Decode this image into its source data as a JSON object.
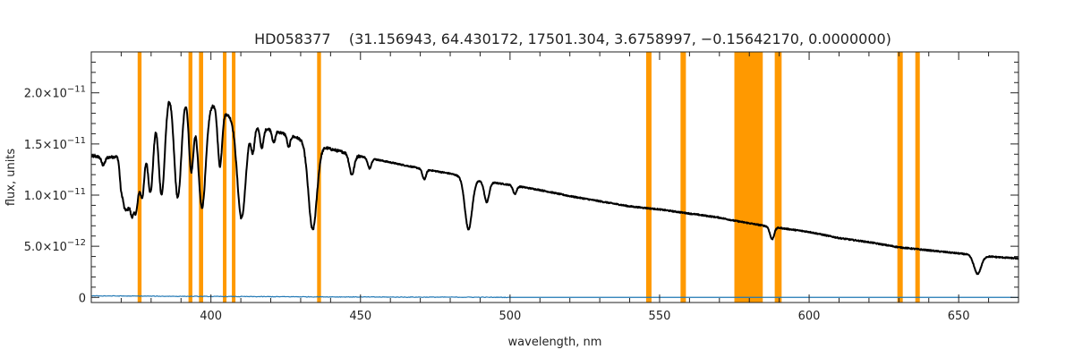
{
  "chart_data": {
    "type": "line",
    "title": "HD058377    (31.156943, 64.430172, 17501.304, 3.6758997, −0.15642170, 0.0000000)",
    "xlabel": "wavelength, nm",
    "ylabel": "flux, units",
    "xlim": [
      360,
      670
    ],
    "ylim": [
      -5e-13,
      2.4e-11
    ],
    "x_ticks": [
      400,
      450,
      500,
      550,
      600,
      650
    ],
    "x_tick_labels": [
      "400",
      "450",
      "500",
      "550",
      "600",
      "650"
    ],
    "y_ticks": [
      0,
      5e-12,
      1e-11,
      1.5e-11,
      2e-11
    ],
    "y_tick_labels": [
      {
        "mant": "0",
        "exp": ""
      },
      {
        "mant": "5.0×10",
        "exp": "−12"
      },
      {
        "mant": "1.0×10",
        "exp": "−11"
      },
      {
        "mant": "1.5×10",
        "exp": "−11"
      },
      {
        "mant": "2.0×10",
        "exp": "−11"
      }
    ],
    "continuum": [
      [
        360,
        1.38e-11
      ],
      [
        366,
        1.37e-11
      ],
      [
        370,
        1.38e-11
      ],
      [
        374,
        1.55e-11
      ],
      [
        378,
        1.95e-11
      ],
      [
        383,
        2.06e-11
      ],
      [
        388,
        2.03e-11
      ],
      [
        394,
        2e-11
      ],
      [
        398,
        1.97e-11
      ],
      [
        402,
        1.85e-11
      ],
      [
        406,
        1.78e-11
      ],
      [
        412,
        1.7e-11
      ],
      [
        420,
        1.64e-11
      ],
      [
        430,
        1.55e-11
      ],
      [
        440,
        1.45e-11
      ],
      [
        450,
        1.38e-11
      ],
      [
        460,
        1.32e-11
      ],
      [
        470,
        1.26e-11
      ],
      [
        480,
        1.21e-11
      ],
      [
        490,
        1.14e-11
      ],
      [
        500,
        1.1e-11
      ],
      [
        510,
        1.05e-11
      ],
      [
        520,
        9.9e-12
      ],
      [
        530,
        9.4e-12
      ],
      [
        540,
        8.9e-12
      ],
      [
        550,
        8.6e-12
      ],
      [
        560,
        8.2e-12
      ],
      [
        570,
        7.8e-12
      ],
      [
        575,
        7.5e-12
      ],
      [
        585,
        7e-12
      ],
      [
        590,
        6.8e-12
      ],
      [
        600,
        6.4e-12
      ],
      [
        610,
        5.8e-12
      ],
      [
        620,
        5.4e-12
      ],
      [
        630,
        4.9e-12
      ],
      [
        640,
        4.6e-12
      ],
      [
        650,
        4.3e-12
      ],
      [
        660,
        4e-12
      ],
      [
        670,
        3.8e-12
      ]
    ],
    "absorption_lines": [
      {
        "x": 364.0,
        "depth": 8e-13,
        "w": 0.6
      },
      {
        "x": 370.0,
        "depth": 3e-12,
        "w": 0.5
      },
      {
        "x": 371.0,
        "depth": 3.8e-12,
        "w": 0.5
      },
      {
        "x": 372.0,
        "depth": 4.8e-12,
        "w": 0.6
      },
      {
        "x": 373.4,
        "depth": 6e-12,
        "w": 0.7
      },
      {
        "x": 375.0,
        "depth": 7.2e-12,
        "w": 0.8
      },
      {
        "x": 377.1,
        "depth": 8.3e-12,
        "w": 0.9
      },
      {
        "x": 379.8,
        "depth": 9.5e-12,
        "w": 1.0
      },
      {
        "x": 383.5,
        "depth": 1.05e-11,
        "w": 1.1
      },
      {
        "x": 388.9,
        "depth": 1.05e-11,
        "w": 1.2
      },
      {
        "x": 393.4,
        "depth": 7.5e-12,
        "w": 0.8
      },
      {
        "x": 397.0,
        "depth": 1.1e-11,
        "w": 1.3
      },
      {
        "x": 403.0,
        "depth": 5.5e-12,
        "w": 0.7
      },
      {
        "x": 410.2,
        "depth": 9.5e-12,
        "w": 1.4
      },
      {
        "x": 414.0,
        "depth": 2.5e-12,
        "w": 0.6
      },
      {
        "x": 417.0,
        "depth": 2e-12,
        "w": 0.6
      },
      {
        "x": 421.0,
        "depth": 1.2e-12,
        "w": 0.5
      },
      {
        "x": 426.0,
        "depth": 1.2e-12,
        "w": 0.5
      },
      {
        "x": 434.0,
        "depth": 8.5e-12,
        "w": 1.4
      },
      {
        "x": 447.1,
        "depth": 2e-12,
        "w": 0.8
      },
      {
        "x": 453.0,
        "depth": 1e-12,
        "w": 0.6
      },
      {
        "x": 471.3,
        "depth": 1e-12,
        "w": 0.6
      },
      {
        "x": 486.1,
        "depth": 5e-12,
        "w": 1.2
      },
      {
        "x": 492.2,
        "depth": 2e-12,
        "w": 0.8
      },
      {
        "x": 501.6,
        "depth": 8e-13,
        "w": 0.6
      },
      {
        "x": 587.6,
        "depth": 1.2e-12,
        "w": 0.7
      },
      {
        "x": 656.3,
        "depth": 1.8e-12,
        "w": 1.2
      }
    ],
    "error_series": [
      {
        "x": 360,
        "y": 1.5e-13
      },
      {
        "x": 380,
        "y": 1.2e-13
      },
      {
        "x": 400,
        "y": 9e-14
      },
      {
        "x": 420,
        "y": 7e-14
      },
      {
        "x": 440,
        "y": 5e-14
      },
      {
        "x": 460,
        "y": 3e-14
      },
      {
        "x": 484,
        "y": 2e-14
      },
      {
        "x": 500,
        "y": 5e-15
      },
      {
        "x": 670,
        "y": 0.0
      }
    ],
    "masked_bands": [
      [
        375.5,
        376.8
      ],
      [
        392.5,
        393.8
      ],
      [
        396.0,
        397.4
      ],
      [
        404.0,
        405.2
      ],
      [
        407.0,
        408.2
      ],
      [
        435.5,
        436.8
      ],
      [
        545.5,
        547.3
      ],
      [
        557.0,
        558.8
      ],
      [
        575.0,
        584.5
      ],
      [
        588.5,
        590.8
      ],
      [
        629.5,
        631.3
      ],
      [
        635.5,
        637.0
      ]
    ],
    "colors": {
      "spectrum": "#000000",
      "error": "#1f77b4",
      "mask": "#ff9900",
      "axes": "#222222"
    },
    "legend": "none",
    "grid": false
  }
}
